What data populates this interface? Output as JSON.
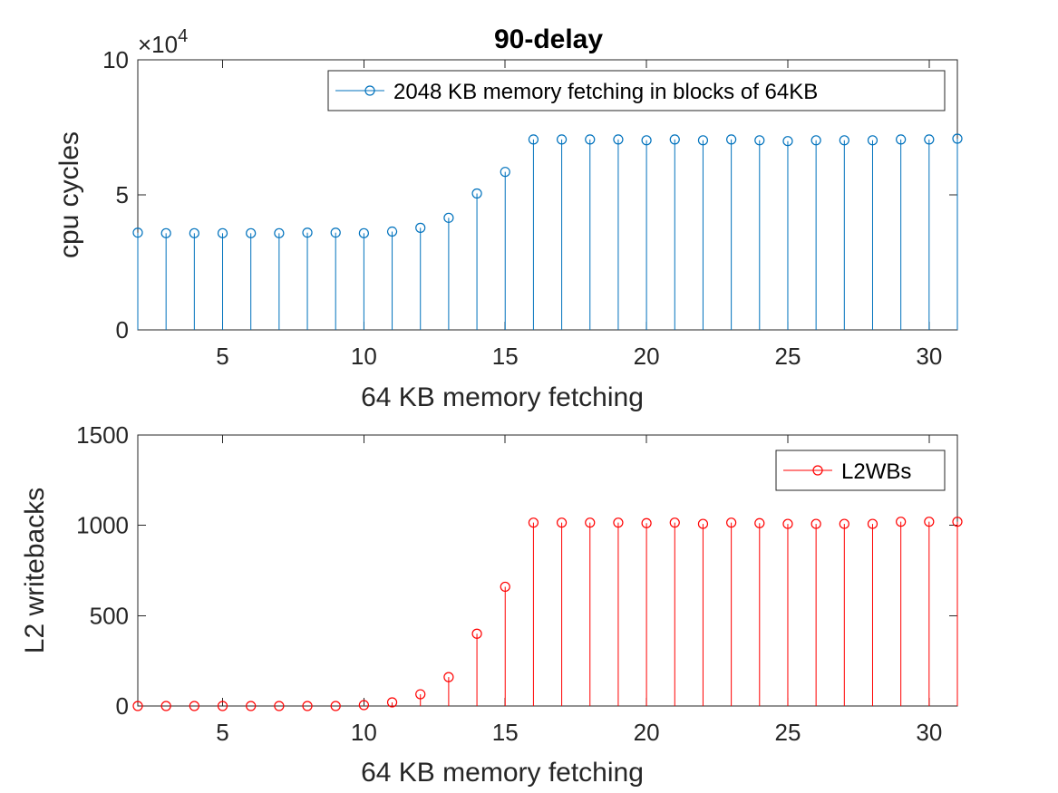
{
  "figure": {
    "title": "90-delay"
  },
  "chart_data": [
    {
      "type": "stem",
      "title": "90-delay",
      "xlabel": "64 KB memory fetching",
      "ylabel": "cpu cycles",
      "exponent_label": "×10",
      "exponent_power": "4",
      "xlim": [
        2,
        31
      ],
      "ylim": [
        0,
        100000
      ],
      "xticks": [
        5,
        10,
        15,
        20,
        25,
        30
      ],
      "yticks": [
        0,
        50000,
        100000
      ],
      "ytick_labels": [
        "0",
        "5",
        "10"
      ],
      "legend_position": "top-right",
      "color": "#0072BD",
      "series": [
        {
          "name": "2048 KB memory fetching in blocks of 64KB",
          "x": [
            2,
            3,
            4,
            5,
            6,
            7,
            8,
            9,
            10,
            11,
            12,
            13,
            14,
            15,
            16,
            17,
            18,
            19,
            20,
            21,
            22,
            23,
            24,
            25,
            26,
            27,
            28,
            29,
            30,
            31
          ],
          "values": [
            36000,
            35800,
            35800,
            35800,
            35800,
            35800,
            36000,
            36000,
            35800,
            36400,
            37800,
            41500,
            50500,
            58500,
            70500,
            70500,
            70500,
            70500,
            70200,
            70500,
            70200,
            70500,
            70200,
            69900,
            70200,
            70200,
            70200,
            70500,
            70500,
            70800
          ]
        }
      ]
    },
    {
      "type": "stem",
      "title": "",
      "xlabel": "64 KB memory fetching",
      "ylabel": "L2 writebacks",
      "xlim": [
        2,
        31
      ],
      "ylim": [
        0,
        1500
      ],
      "xticks": [
        5,
        10,
        15,
        20,
        25,
        30
      ],
      "yticks": [
        0,
        500,
        1000,
        1500
      ],
      "ytick_labels": [
        "0",
        "500",
        "1000",
        "1500"
      ],
      "legend_position": "top-right",
      "color": "#FF0000",
      "series": [
        {
          "name": "L2WBs",
          "x": [
            2,
            3,
            4,
            5,
            6,
            7,
            8,
            9,
            10,
            11,
            12,
            13,
            14,
            15,
            16,
            17,
            18,
            19,
            20,
            21,
            22,
            23,
            24,
            25,
            26,
            27,
            28,
            29,
            30,
            31
          ],
          "values": [
            0,
            0,
            0,
            0,
            0,
            0,
            0,
            0,
            5,
            20,
            65,
            160,
            400,
            660,
            1015,
            1015,
            1015,
            1015,
            1012,
            1015,
            1008,
            1015,
            1012,
            1008,
            1008,
            1008,
            1008,
            1020,
            1020,
            1020
          ]
        }
      ]
    }
  ]
}
